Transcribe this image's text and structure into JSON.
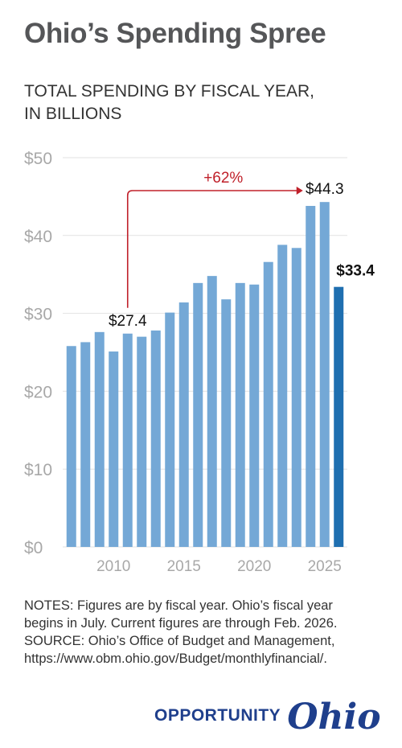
{
  "header": {
    "title": "Ohio’s Spending Spree",
    "subtitle_lines": [
      "TOTAL SPENDING BY FISCAL YEAR,",
      "IN BILLIONS"
    ]
  },
  "chart_data": {
    "type": "bar",
    "x": [
      2007,
      2008,
      2009,
      2010,
      2011,
      2012,
      2013,
      2014,
      2015,
      2016,
      2017,
      2018,
      2019,
      2020,
      2021,
      2022,
      2023,
      2024,
      2025,
      2026
    ],
    "values": [
      25.8,
      26.3,
      27.6,
      25.1,
      27.4,
      27.0,
      27.8,
      30.1,
      31.4,
      33.9,
      34.8,
      31.8,
      33.9,
      33.7,
      36.6,
      38.8,
      38.4,
      43.8,
      44.3,
      33.4
    ],
    "ylim": [
      0,
      50
    ],
    "y_ticks": [
      0,
      10,
      20,
      30,
      40,
      50
    ],
    "y_tick_labels": [
      "$0",
      "$10",
      "$20",
      "$30",
      "$40",
      "$50"
    ],
    "x_ticks": [
      2010,
      2015,
      2020,
      2025
    ],
    "x_tick_labels": [
      "2010",
      "2015",
      "2020",
      "2025"
    ],
    "grid": true,
    "colors": {
      "bar": "#74a8d6",
      "highlight_bar": "#1f6fb0",
      "annotation": "#c0202a",
      "grid": "#e2e2e2",
      "axis_label": "#a8a8a8"
    },
    "highlight_index": 19,
    "data_labels": [
      {
        "index": 4,
        "text": "$27.4",
        "bold": false
      },
      {
        "index": 18,
        "text": "$44.3",
        "bold": false
      },
      {
        "index": 19,
        "text": "$33.4",
        "bold": true
      }
    ],
    "annotation": {
      "from_index": 4,
      "to_index": 18,
      "text": "+62%"
    }
  },
  "notes": {
    "lines": [
      "NOTES: Figures are by fiscal year. Ohio’s fiscal year",
      "begins in July. Current figures are through Feb. 2026.",
      "SOURCE: Ohio’s Office of Budget and Management,",
      "https://www.obm.ohio.gov/Budget/monthlyfinancial/."
    ]
  },
  "logo": {
    "word": "OPPORTUNITY",
    "script": "Ohio"
  }
}
